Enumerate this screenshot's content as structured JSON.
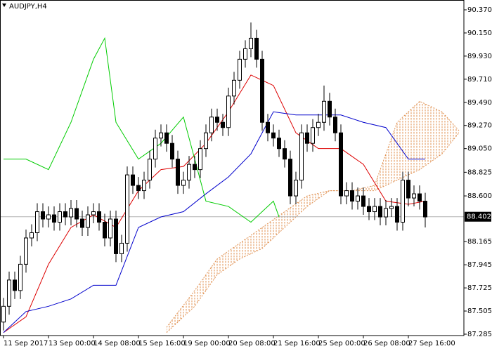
{
  "chart_data": {
    "type": "candlestick",
    "title": "AUDJPY,H4",
    "categories": [
      "11 Sep 2017",
      null,
      null,
      null,
      null,
      null,
      null,
      null,
      "13 Sep 00:00",
      null,
      null,
      null,
      null,
      null,
      null,
      null,
      "14 Sep 08:00",
      null,
      null,
      null,
      null,
      null,
      null,
      null,
      "15 Sep 16:00",
      null,
      null,
      null,
      null,
      null,
      null,
      null,
      "19 Sep 00:00",
      null,
      null,
      null,
      null,
      null,
      null,
      null,
      "20 Sep 08:00",
      null,
      null,
      null,
      null,
      null,
      null,
      null,
      "21 Sep 16:00",
      null,
      null,
      null,
      null,
      null,
      null,
      null,
      "25 Sep 00:00",
      null,
      null,
      null,
      null,
      null,
      null,
      null,
      "26 Sep 08:00",
      null,
      null,
      null,
      null,
      null,
      null,
      null,
      "27 Sep 16:00",
      null,
      null,
      null
    ],
    "open": [
      87.4,
      87.55,
      87.8,
      87.7,
      87.95,
      88.2,
      88.25,
      88.45,
      88.38,
      88.42,
      88.35,
      88.45,
      88.4,
      88.48,
      88.38,
      88.3,
      88.42,
      88.45,
      88.35,
      88.2,
      88.38,
      88.05,
      88.15,
      88.8,
      88.7,
      88.65,
      88.75,
      88.95,
      89.15,
      89.2,
      89.1,
      88.95,
      88.7,
      88.75,
      88.9,
      88.85,
      89.05,
      89.2,
      89.35,
      89.3,
      89.25,
      89.55,
      89.7,
      89.9,
      90.0,
      90.1,
      89.9,
      89.3,
      89.2,
      89.15,
      89.05,
      88.95,
      88.6,
      88.75,
      89.2,
      89.1,
      89.25,
      89.3,
      89.5,
      89.35,
      89.2,
      88.6,
      88.65,
      88.55,
      88.6,
      88.5,
      88.45,
      88.5,
      88.4,
      88.48,
      88.5,
      88.35,
      88.75,
      88.58,
      88.62,
      88.55
    ],
    "high": [
      87.63,
      87.88,
      87.88,
      88.03,
      88.28,
      88.33,
      88.53,
      88.53,
      88.5,
      88.5,
      88.53,
      88.53,
      88.56,
      88.56,
      88.46,
      88.5,
      88.53,
      88.53,
      88.43,
      88.46,
      88.46,
      88.23,
      88.88,
      88.88,
      88.78,
      88.83,
      89.03,
      89.23,
      89.28,
      89.28,
      89.18,
      89.03,
      88.83,
      88.98,
      88.98,
      89.13,
      89.28,
      89.43,
      89.43,
      89.38,
      89.63,
      89.78,
      89.98,
      90.08,
      90.25,
      90.18,
      89.98,
      89.38,
      89.28,
      89.23,
      89.13,
      89.03,
      88.83,
      89.28,
      89.28,
      89.33,
      89.38,
      89.65,
      89.58,
      89.43,
      89.28,
      88.73,
      88.73,
      88.68,
      88.68,
      88.58,
      88.58,
      88.58,
      88.56,
      88.58,
      88.58,
      88.83,
      88.83,
      88.7,
      88.7,
      88.63
    ],
    "low": [
      87.32,
      87.47,
      87.62,
      87.62,
      87.87,
      88.12,
      88.17,
      88.3,
      88.3,
      88.27,
      88.27,
      88.32,
      88.32,
      88.3,
      88.22,
      88.22,
      88.34,
      88.27,
      88.12,
      88.12,
      87.97,
      87.97,
      88.07,
      88.62,
      88.57,
      88.57,
      88.67,
      88.87,
      89.07,
      89.02,
      88.87,
      88.62,
      88.62,
      88.67,
      88.77,
      88.77,
      88.97,
      89.12,
      89.22,
      89.17,
      89.17,
      89.47,
      89.62,
      89.82,
      89.92,
      89.82,
      89.22,
      89.12,
      89.07,
      88.97,
      88.87,
      88.52,
      88.52,
      88.67,
      89.02,
      89.02,
      89.17,
      89.22,
      89.27,
      89.12,
      88.52,
      88.52,
      88.47,
      88.47,
      88.42,
      88.37,
      88.37,
      88.32,
      88.32,
      88.4,
      88.27,
      88.27,
      88.5,
      88.5,
      88.47,
      88.3
    ],
    "close": [
      87.55,
      87.8,
      87.7,
      87.95,
      88.2,
      88.25,
      88.45,
      88.38,
      88.42,
      88.35,
      88.45,
      88.4,
      88.48,
      88.38,
      88.3,
      88.42,
      88.45,
      88.35,
      88.2,
      88.38,
      88.05,
      88.15,
      88.8,
      88.7,
      88.65,
      88.75,
      88.95,
      89.15,
      89.2,
      89.1,
      88.95,
      88.7,
      88.75,
      88.9,
      88.85,
      89.05,
      89.2,
      89.35,
      89.3,
      89.25,
      89.55,
      89.7,
      89.9,
      90.0,
      90.1,
      89.9,
      89.3,
      89.2,
      89.15,
      89.05,
      88.95,
      88.6,
      88.75,
      89.2,
      89.1,
      89.25,
      89.3,
      89.5,
      89.35,
      89.2,
      88.6,
      88.65,
      88.55,
      88.6,
      88.5,
      88.45,
      88.5,
      88.4,
      88.48,
      88.5,
      88.35,
      88.75,
      88.58,
      88.62,
      88.55,
      88.4
    ],
    "up_color": "#ffffff",
    "down_color": "#000000",
    "lines": [
      {
        "color": "#dd0000",
        "x": [
          0,
          4,
          8,
          12,
          16,
          20,
          24,
          28,
          32,
          36,
          40,
          44,
          48,
          52,
          56,
          60,
          64,
          68,
          72,
          75
        ],
        "values": [
          87.3,
          87.45,
          87.95,
          88.3,
          88.42,
          88.3,
          88.65,
          88.85,
          88.88,
          89.1,
          89.4,
          89.75,
          89.65,
          89.2,
          89.05,
          89.05,
          88.9,
          88.55,
          88.52,
          88.55
        ]
      },
      {
        "color": "#0000cc",
        "x": [
          0,
          4,
          8,
          12,
          16,
          20,
          24,
          28,
          32,
          36,
          40,
          44,
          48,
          52,
          56,
          60,
          64,
          68,
          72,
          75
        ],
        "values": [
          87.3,
          87.5,
          87.55,
          87.62,
          87.75,
          87.75,
          88.3,
          88.4,
          88.45,
          88.62,
          88.78,
          89.0,
          89.4,
          89.37,
          89.37,
          89.37,
          89.3,
          89.25,
          88.95,
          88.95
        ]
      },
      {
        "color": "#00cc00",
        "x": [
          0,
          4,
          8,
          12,
          16,
          18,
          20,
          24,
          28,
          32,
          36,
          40,
          44,
          48,
          49
        ],
        "values": [
          88.95,
          88.95,
          88.85,
          89.3,
          89.9,
          90.1,
          89.3,
          88.95,
          89.1,
          89.35,
          88.55,
          88.5,
          88.35,
          88.55,
          88.4
        ]
      }
    ],
    "cloud": {
      "color": "#e09050",
      "span_a": {
        "x": [
          29,
          34,
          38,
          42,
          46,
          50,
          54,
          58,
          62,
          66,
          70,
          74,
          78,
          81
        ],
        "values": [
          87.35,
          87.7,
          88.0,
          88.15,
          88.3,
          88.45,
          88.6,
          88.65,
          88.65,
          88.7,
          89.3,
          89.5,
          89.4,
          89.22
        ]
      },
      "span_b": {
        "x": [
          29,
          34,
          38,
          42,
          46,
          50,
          54,
          58,
          62,
          66,
          70,
          74,
          78,
          81
        ],
        "values": [
          87.3,
          87.55,
          87.85,
          88.0,
          88.1,
          88.3,
          88.5,
          88.65,
          88.65,
          88.65,
          88.75,
          88.85,
          89.0,
          89.2
        ]
      }
    },
    "last_price": 88.402,
    "ylim": [
      87.285,
      90.37
    ],
    "yticks": [
      {
        "value": 90.37,
        "label": "90.370"
      },
      {
        "value": 90.15,
        "label": "90.150"
      },
      {
        "value": 89.93,
        "label": "89.930"
      },
      {
        "value": 89.71,
        "label": "89.710"
      },
      {
        "value": 89.49,
        "label": "89.490"
      },
      {
        "value": 89.27,
        "label": "89.270"
      },
      {
        "value": 89.05,
        "label": "89.050"
      },
      88.825,
      {
        "value": 88.6,
        "label": "88.600"
      },
      88.165,
      87.945,
      87.725,
      87.505,
      87.285
    ]
  }
}
